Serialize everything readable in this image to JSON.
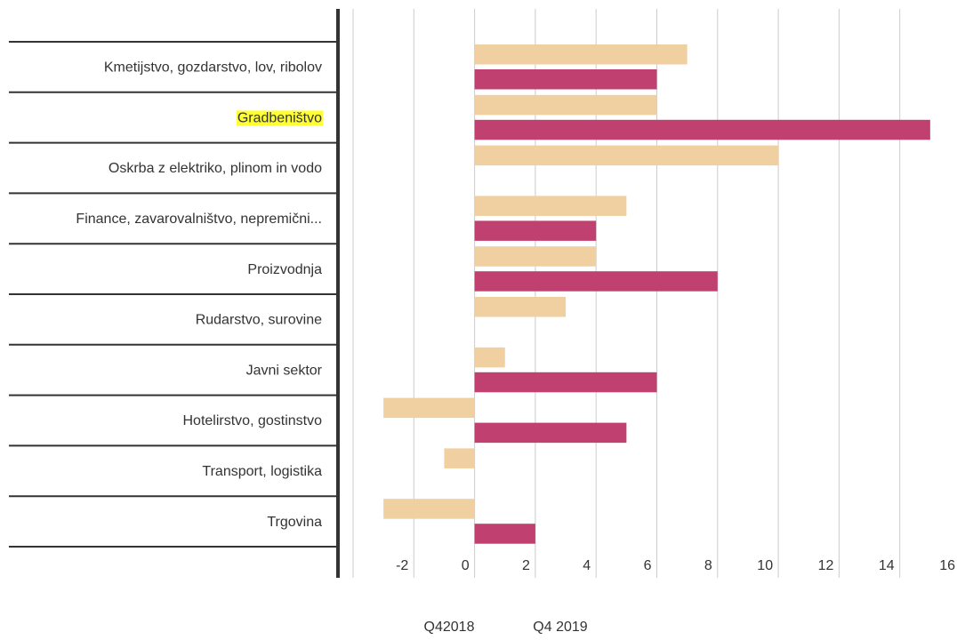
{
  "chart_data": {
    "type": "bar",
    "orientation": "horizontal",
    "categories": [
      "Kmetijstvo, gozdarstvo, lov, ribolov",
      "Gradbeništvo",
      "Oskrba z elektriko, plinom in vodo",
      "Finance, zavarovalništvo, nepremični...",
      "Proizvodnja",
      "Rudarstvo, surovine",
      "Javni sektor",
      "Hotelirstvo, gostinstvo",
      "Transport, logistika",
      "Trgovina"
    ],
    "series": [
      {
        "name": "Q42018",
        "color": "#f0cfa0",
        "values": [
          7,
          6,
          10,
          5,
          4,
          3,
          1,
          -3,
          -1,
          -3
        ]
      },
      {
        "name": "Q4 2019",
        "color": "#c0416f",
        "values": [
          6,
          15,
          0,
          4,
          8,
          0,
          6,
          5,
          0,
          2
        ]
      }
    ],
    "xlim": [
      -4,
      16
    ],
    "xticks": [
      -2,
      0,
      2,
      4,
      6,
      8,
      10,
      12,
      14,
      16
    ],
    "grid": true
  }
}
